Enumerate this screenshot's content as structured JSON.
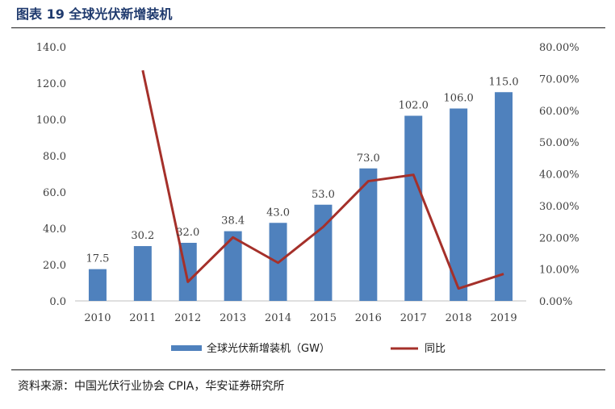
{
  "header": {
    "title": "图表 19 全球光伏新增装机"
  },
  "footer": {
    "source": "资料来源：中国光伏行业协会 CPIA，华安证券研究所"
  },
  "colors": {
    "bar": "#4f81bd",
    "line": "#a5302a",
    "rule": "#1a1a1a"
  },
  "chart_data": {
    "type": "bar",
    "categories": [
      "2010",
      "2011",
      "2012",
      "2013",
      "2014",
      "2015",
      "2016",
      "2017",
      "2018",
      "2019"
    ],
    "series": [
      {
        "name": "全球光伏新增装机（GW）",
        "type": "bar",
        "axis": "left",
        "values": [
          17.5,
          30.2,
          32.0,
          38.4,
          43.0,
          53.0,
          73.0,
          102.0,
          106.0,
          115.0
        ],
        "labels": [
          "17.5",
          "30.2",
          "32.0",
          "38.4",
          "43.0",
          "53.0",
          "73.0",
          "102.0",
          "106.0",
          "115.0"
        ]
      },
      {
        "name": "同比",
        "type": "line",
        "axis": "right",
        "values": [
          null,
          72.6,
          6.0,
          20.0,
          12.0,
          23.3,
          37.7,
          39.7,
          3.9,
          8.5
        ]
      }
    ],
    "y_left": {
      "lim": [
        0,
        140
      ],
      "ticks": [
        "0.0",
        "20.0",
        "40.0",
        "60.0",
        "80.0",
        "100.0",
        "120.0",
        "140.0"
      ]
    },
    "y_right": {
      "lim": [
        0,
        80
      ],
      "ticks": [
        "0.00%",
        "10.00%",
        "20.00%",
        "30.00%",
        "40.00%",
        "50.00%",
        "60.00%",
        "70.00%",
        "80.00%"
      ]
    },
    "grid": false,
    "legend": "bottom-center"
  }
}
